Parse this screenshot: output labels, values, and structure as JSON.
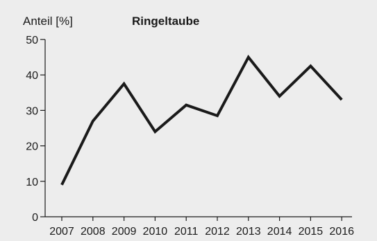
{
  "chart_data": {
    "type": "line",
    "title": "Ringeltaube",
    "xlabel": "",
    "ylabel": "Anteil [%]",
    "x": [
      "2007",
      "2008",
      "2009",
      "2010",
      "2011",
      "2012",
      "2013",
      "2014",
      "2015",
      "2016"
    ],
    "series": [
      {
        "values": [
          9,
          27,
          37.5,
          24,
          31.5,
          28.5,
          45,
          34,
          42.5,
          33
        ]
      }
    ],
    "ylim": [
      0,
      50
    ],
    "yticks": [
      "0",
      "10",
      "20",
      "30",
      "40",
      "50"
    ],
    "grid": false,
    "legend": "none",
    "colors": {
      "line": "#1a1a1a",
      "background": "#ededed"
    }
  }
}
